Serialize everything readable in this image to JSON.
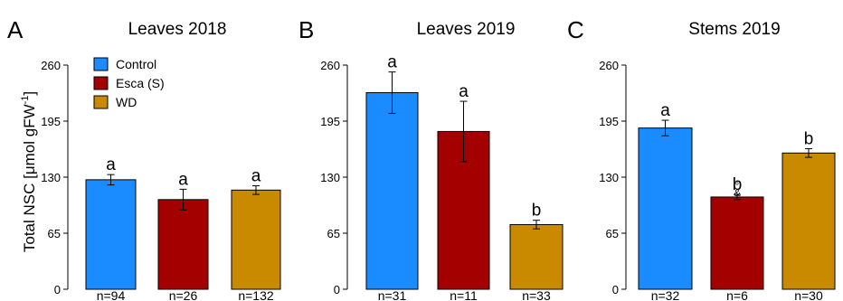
{
  "figure": {
    "ylabel_main": "Total NSC [μmol gFW",
    "ylabel_sup": "-1",
    "ylabel_end": "]"
  },
  "legend": [
    {
      "label": "Control",
      "color": "#1a8cff"
    },
    {
      "label": "Esca (S)",
      "color": "#a50000"
    },
    {
      "label": "WD",
      "color": "#c98a00"
    }
  ],
  "colors": {
    "Control": "#1a8cff",
    "Esca (S)": "#a50000",
    "WD": "#c98a00"
  },
  "chart_data": [
    {
      "panel": "A",
      "type": "bar",
      "title": "Leaves 2018",
      "categories": [
        "Control",
        "Esca (S)",
        "WD"
      ],
      "values": [
        127,
        104,
        115
      ],
      "errors": [
        6,
        12,
        5
      ],
      "n_labels": [
        "n=94",
        "n=26",
        "n=132"
      ],
      "significance": [
        "a",
        "a",
        "a"
      ],
      "yticks": [
        0,
        65,
        130,
        195,
        260
      ],
      "ylim": [
        0,
        260
      ]
    },
    {
      "panel": "B",
      "type": "bar",
      "title": "Leaves 2019",
      "categories": [
        "Control",
        "Esca (S)",
        "WD"
      ],
      "values": [
        228,
        183,
        75
      ],
      "errors": [
        24,
        35,
        5
      ],
      "n_labels": [
        "n=31",
        "n=11",
        "n=33"
      ],
      "significance": [
        "a",
        "a",
        "b"
      ],
      "yticks": [
        0,
        65,
        130,
        195,
        260
      ],
      "ylim": [
        0,
        260
      ]
    },
    {
      "panel": "C",
      "type": "bar",
      "title": "Stems 2019",
      "categories": [
        "Control",
        "Esca (S)",
        "WD"
      ],
      "values": [
        187,
        107,
        158
      ],
      "errors": [
        9,
        3,
        5
      ],
      "n_labels": [
        "n=32",
        "n=6",
        "n=30"
      ],
      "significance": [
        "a",
        "b",
        "b"
      ],
      "yticks": [
        0,
        65,
        130,
        195,
        260
      ],
      "ylim": [
        0,
        260
      ],
      "markers": [
        {
          "category": "Esca (S)",
          "symbol": "°",
          "value": 120
        },
        {
          "category": "Esca (S)",
          "symbol": "&",
          "value": 112
        }
      ]
    }
  ]
}
